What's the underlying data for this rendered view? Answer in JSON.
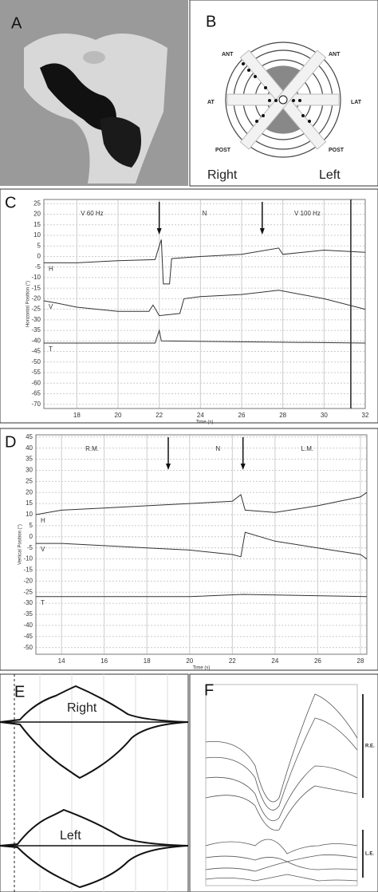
{
  "panels": {
    "a": {
      "label": "A"
    },
    "b": {
      "label": "B",
      "ant_right": "ANT",
      "ant_left": "ANT",
      "at": "AT",
      "lat": "LAT",
      "post_right": "POST",
      "post_left": "POST",
      "side_right": "Right",
      "side_left": "Left"
    },
    "e": {
      "label": "E",
      "right": "Right",
      "left": "Left"
    },
    "f": {
      "label": "F",
      "re": "R.E.",
      "le": "L.E."
    }
  },
  "chart_data": [
    {
      "type": "line",
      "panel": "C",
      "annotations": [
        "V 60 Hz",
        "N",
        "V 100 Hz"
      ],
      "xlabel": "Time (s)",
      "ylabel": "Horizontal Position (°)",
      "xlim": [
        16.4,
        32
      ],
      "ylim": [
        -72,
        27
      ],
      "xticks": [
        18,
        20,
        22,
        24,
        26,
        28,
        30,
        32
      ],
      "yticks": [
        25,
        20,
        15,
        10,
        5,
        0,
        -5,
        -10,
        -15,
        -20,
        -25,
        -30,
        -35,
        -40,
        -45,
        -50,
        -55,
        -60,
        -65,
        -70
      ],
      "grid": true,
      "series": [
        {
          "name": "H",
          "color": "#333333",
          "x": [
            16.4,
            18,
            20,
            21.8,
            22,
            22.1,
            22.2,
            22.5,
            22.6,
            24,
            26,
            27.8,
            28,
            30,
            32
          ],
          "values": [
            -3,
            -3,
            -2,
            -1.5,
            5,
            8,
            -13,
            -13,
            -1,
            0,
            1,
            4,
            1,
            3,
            2
          ]
        },
        {
          "name": "V",
          "color": "#333333",
          "x": [
            16.4,
            17,
            18,
            20,
            21.5,
            21.7,
            22,
            23,
            23.2,
            24,
            26,
            27.8,
            30,
            32
          ],
          "values": [
            -21,
            -22,
            -24,
            -26,
            -26,
            -23,
            -28,
            -27,
            -20,
            -19,
            -18,
            -16,
            -20,
            -25
          ]
        },
        {
          "name": "T",
          "color": "#333333",
          "x": [
            16.4,
            21.8,
            22,
            22.1,
            32
          ],
          "values": [
            -41,
            -41,
            -35,
            -40,
            -41
          ]
        }
      ]
    },
    {
      "type": "line",
      "panel": "D",
      "annotations": [
        "R.M.",
        "N",
        "L.M."
      ],
      "xlabel": "Time (s)",
      "ylabel": "Vertical Position (°)",
      "xlim": [
        12.8,
        28.3
      ],
      "ylim": [
        -53,
        46
      ],
      "xticks": [
        14,
        16,
        18,
        20,
        22,
        24,
        26,
        28
      ],
      "yticks": [
        45,
        40,
        35,
        30,
        25,
        20,
        15,
        10,
        5,
        0,
        -5,
        -10,
        -15,
        -20,
        -25,
        -30,
        -35,
        -40,
        -45,
        -50
      ],
      "grid": true,
      "series": [
        {
          "name": "H",
          "color": "#333333",
          "x": [
            12.8,
            14,
            16,
            18,
            20,
            22,
            22.4,
            22.6,
            24,
            26,
            28,
            28.3
          ],
          "values": [
            10,
            12,
            13,
            14,
            15,
            16,
            19,
            12,
            11,
            14,
            18,
            20
          ]
        },
        {
          "name": "V",
          "color": "#333333",
          "x": [
            12.8,
            14,
            16,
            18,
            20,
            22,
            22.4,
            22.6,
            24,
            26,
            28,
            28.3
          ],
          "values": [
            -3,
            -3,
            -4,
            -5,
            -6,
            -8,
            -9,
            2,
            -2,
            -5,
            -8,
            -10
          ]
        },
        {
          "name": "T",
          "color": "#333333",
          "x": [
            12.8,
            20,
            22.5,
            28.3
          ],
          "values": [
            -27,
            -27,
            -26,
            -27
          ]
        }
      ]
    }
  ]
}
